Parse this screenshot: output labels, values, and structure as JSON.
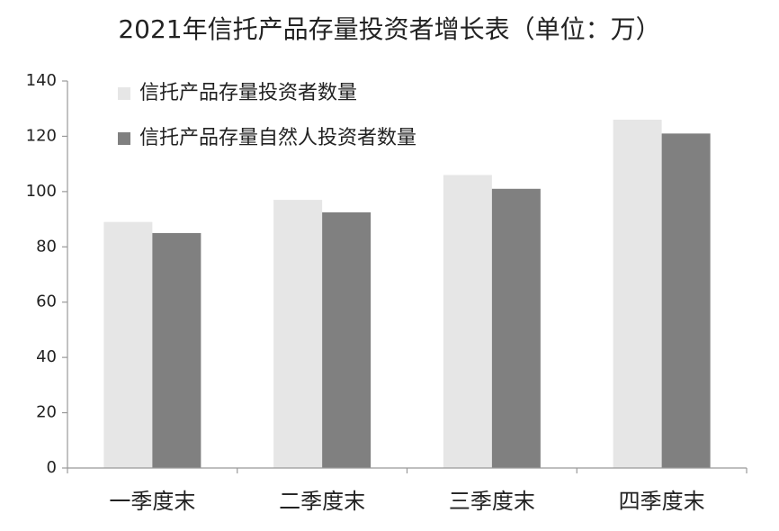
{
  "chart_data": {
    "type": "bar",
    "title": "2021年信托产品存量投资者增长表（单位：万）",
    "categories": [
      "一季度末",
      "二季度末",
      "三季度末",
      "四季度末"
    ],
    "series": [
      {
        "name": "信托产品存量投资者数量",
        "color": "#e6e6e6",
        "values": [
          89,
          97,
          106,
          126
        ]
      },
      {
        "name": "信托产品存量自然人投资者数量",
        "color": "#808080",
        "values": [
          85,
          92.5,
          101,
          121
        ]
      }
    ],
    "ylim": [
      0,
      140
    ],
    "yticks": [
      0,
      20,
      40,
      60,
      80,
      100,
      120,
      140
    ],
    "grid": false,
    "legend": "top-left"
  }
}
